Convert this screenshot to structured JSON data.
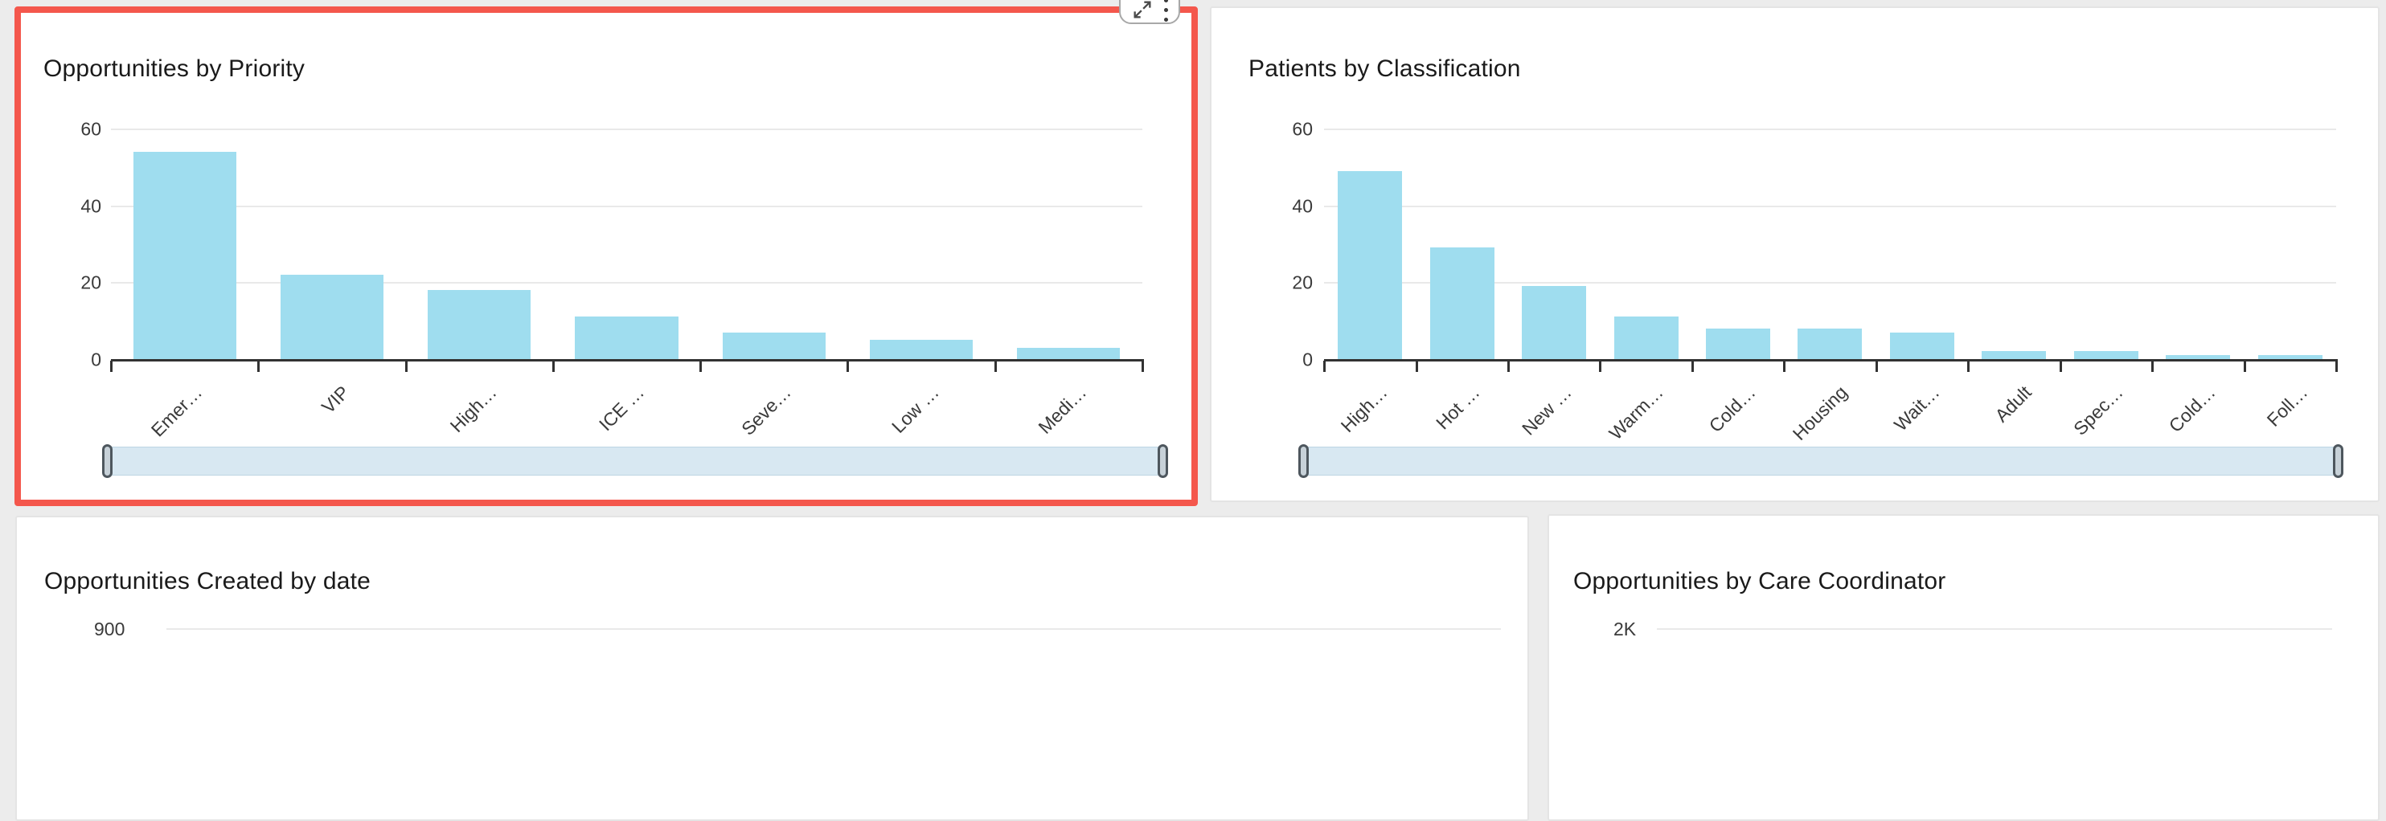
{
  "page": {
    "background_color": "#ECECEC"
  },
  "visual_toolbar": {
    "expand_icon": "expand-arrows-icon",
    "menu_icon": "kebab-menu-icon"
  },
  "colors": {
    "selection_border": "#F4574C",
    "bar_fill": "#9FDDEF",
    "scrollbar_track": "#D8E8F2",
    "panel_background": "#FFFFFF",
    "page_background": "#ECECEC",
    "axis_line": "#323232",
    "gridline": "#E9E9E9"
  },
  "chart_data": [
    {
      "type": "bar",
      "title": "Opportunities by Priority",
      "categories": [
        "Emer…",
        "VIP",
        "High…",
        "ICE …",
        "Seve…",
        "Low …",
        "Medi…"
      ],
      "values": [
        54,
        22,
        18,
        11,
        7,
        5,
        3
      ],
      "xlabel": "",
      "ylabel": "",
      "yticks": [
        0,
        20,
        40,
        60
      ],
      "ylim": [
        0,
        60
      ],
      "grid": true,
      "legend": "none",
      "bar_color": "#9FDDEF",
      "selected": true,
      "has_x_scrollbar": true
    },
    {
      "type": "bar",
      "title": "Patients by Classification",
      "categories": [
        "High…",
        "Hot …",
        "New …",
        "Warm…",
        "Cold…",
        "Housing",
        "Wait…",
        "Adult",
        "Spec…",
        "Cold…",
        "Foll…"
      ],
      "values": [
        49,
        29,
        19,
        11,
        8,
        8,
        7,
        2,
        2,
        1,
        1
      ],
      "xlabel": "",
      "ylabel": "",
      "yticks": [
        0,
        20,
        40,
        60
      ],
      "ylim": [
        0,
        60
      ],
      "grid": true,
      "legend": "none",
      "bar_color": "#9FDDEF",
      "selected": false,
      "has_x_scrollbar": true
    },
    {
      "type": "bar",
      "title": "Opportunities Created by date",
      "partially_visible": true,
      "visible_ytick": "900"
    },
    {
      "type": "bar",
      "title": "Opportunities by Care Coordinator",
      "partially_visible": true,
      "visible_ytick": "2K"
    }
  ]
}
